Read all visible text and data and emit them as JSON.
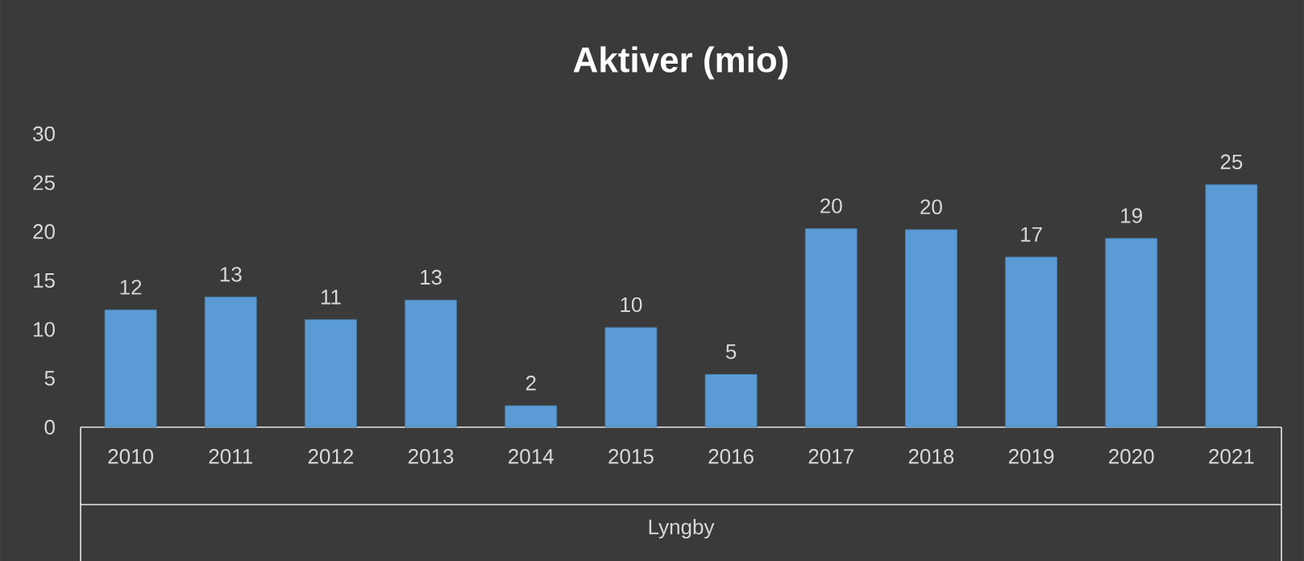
{
  "chart_data": {
    "type": "bar",
    "title": "Aktiver (mio)",
    "xlabel": "Lyngby",
    "categories": [
      "2010",
      "2011",
      "2012",
      "2013",
      "2014",
      "2015",
      "2016",
      "2017",
      "2018",
      "2019",
      "2020",
      "2021"
    ],
    "values": [
      12,
      13.3,
      11,
      13,
      2.2,
      10.2,
      5.4,
      20.3,
      20.2,
      17.4,
      19.3,
      24.8
    ],
    "value_labels": [
      "12",
      "13",
      "11",
      "13",
      "2",
      "10",
      "5",
      "20",
      "20",
      "17",
      "19",
      "25"
    ],
    "color": "#5b9bd5",
    "ylim": [
      0,
      30
    ],
    "yticks": [
      0,
      5,
      10,
      15,
      20,
      25,
      30
    ]
  }
}
